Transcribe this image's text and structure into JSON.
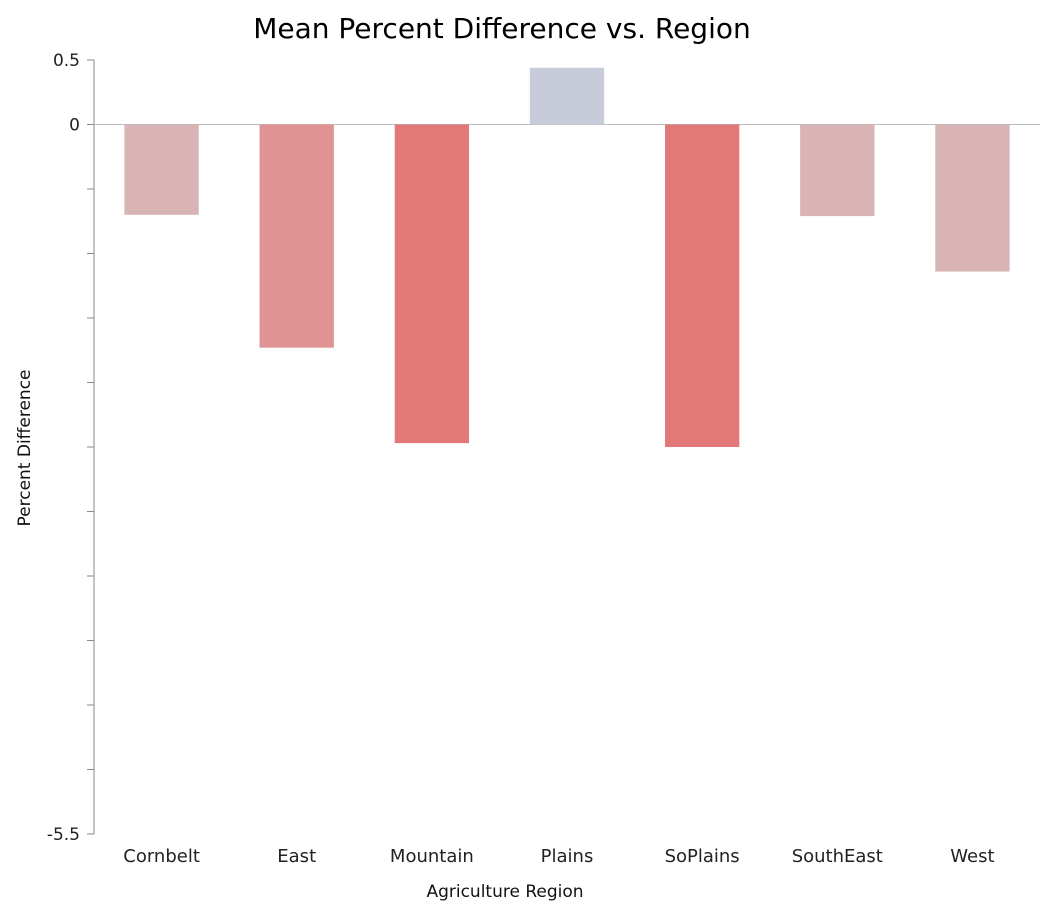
{
  "chart_data": {
    "type": "bar",
    "title": "Mean Percent Difference vs. Region",
    "xlabel": "Agriculture Region",
    "ylabel": "Percent Difference",
    "categories": [
      "Cornbelt",
      "East",
      "Mountain",
      "Plains",
      "SoPlains",
      "SouthEast",
      "West"
    ],
    "values": [
      -0.7,
      -1.73,
      -2.47,
      0.44,
      -2.5,
      -0.71,
      -1.14
    ],
    "ylim": [
      -5.5,
      0.5
    ],
    "y_tick_labels": [
      "0.5",
      "0",
      "-5.5"
    ],
    "y_tick_values": [
      0.5,
      0,
      -5.5
    ],
    "minor_tick_step": 0.5,
    "grid": false,
    "colors": {
      "positive": "#c8ccda",
      "negative_light": "#d9b4b5",
      "negative_mid": "#df9393",
      "negative_strong": "#e27878",
      "axis": "#888888"
    }
  }
}
